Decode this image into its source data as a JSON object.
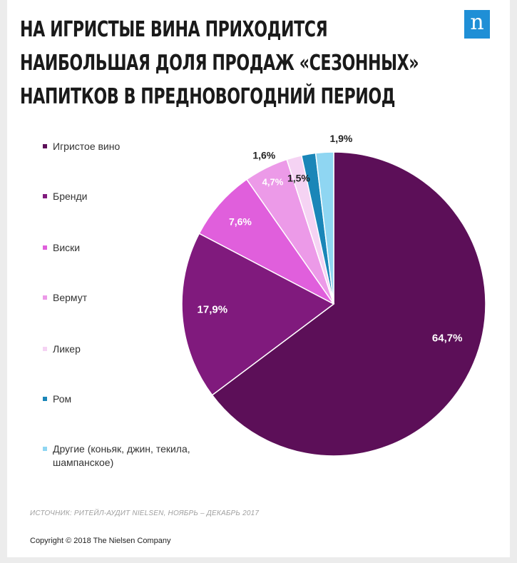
{
  "title_lines": [
    "НА ИГРИСТЫЕ ВИНА ПРИХОДИТСЯ",
    "НАИБОЛЬШАЯ ДОЛЯ ПРОДАЖ «СЕЗОННЫХ»",
    "НАПИТКОВ В ПРЕДНОВОГОДНИЙ ПЕРИОД"
  ],
  "logo_letter": "n",
  "source": "ИСТОЧНИК: РИТЕЙЛ-АУДИТ NIELSEN, НОЯБРЬ – ДЕКАБРЬ 2017",
  "copyright": "Copyright © 2018 The Nielsen Company",
  "colors": {
    "accent": "#1f8fd6",
    "title": "#1a1a1a"
  },
  "chart_data": {
    "type": "pie",
    "start": "12 o'clock",
    "direction": "clockwise",
    "legend_position": "left",
    "slices": [
      {
        "name": "Игристое вино",
        "value": 64.7,
        "label": "64,7%",
        "color": "#5c0f58",
        "label_color": "#ffffff"
      },
      {
        "name": "Бренди",
        "value": 17.9,
        "label": "17,9%",
        "color": "#801a7d",
        "label_color": "#ffffff"
      },
      {
        "name": "Виски",
        "value": 7.6,
        "label": "7,6%",
        "color": "#e05fdc",
        "label_color": "#ffffff"
      },
      {
        "name": "Вермут",
        "value": 4.7,
        "label": "4,7%",
        "color": "#ec9ae8",
        "label_color": "#ffffff"
      },
      {
        "name": "Ликер",
        "value": 1.6,
        "label": "1,6%",
        "color": "#f5d3f3",
        "label_color": "#222222"
      },
      {
        "name": "Ром",
        "value": 1.5,
        "label": "1,5%",
        "color": "#1a86b8",
        "label_color": "#222222"
      },
      {
        "name": "Другие (коньяк, джин, текила, шампанское)",
        "value": 1.9,
        "label": "1,9%",
        "color": "#8fd6f2",
        "label_color": "#222222"
      }
    ]
  }
}
